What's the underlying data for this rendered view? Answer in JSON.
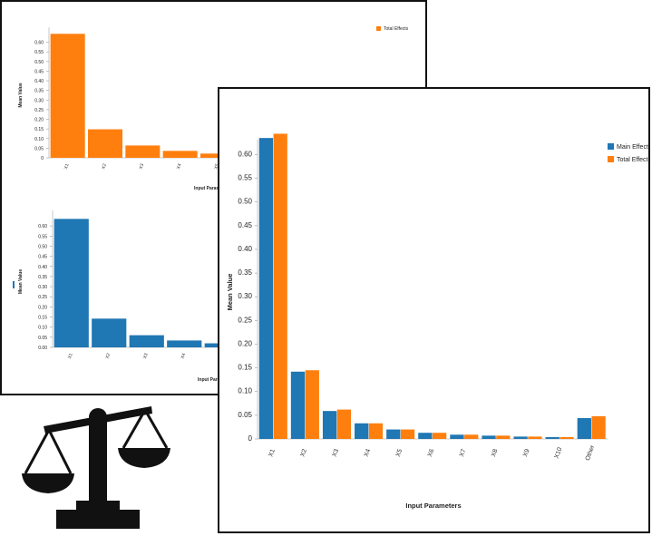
{
  "colors": {
    "main": "#1f77b4",
    "total": "#ff7f0e",
    "icon": "#111111"
  },
  "icons": {
    "scale": "balance-scale-icon"
  },
  "chart_data": [
    {
      "id": "top",
      "type": "bar",
      "categories": [
        "X1",
        "X2",
        "X3",
        "X4",
        "X5",
        "X6"
      ],
      "series": [
        {
          "name": "Total Effects",
          "values": [
            0.644,
            0.148,
            0.064,
            0.036,
            0.022,
            0.014
          ]
        }
      ],
      "ylabel": "Mean Value",
      "xlabel": "Input Parameters",
      "ylim": [
        0,
        0.65
      ],
      "yticks": [
        "0.60",
        "0.55",
        "0.50",
        "0.45",
        "0.40",
        "0.35",
        "0.30",
        "0.25",
        "0.20",
        "0.15",
        "0.10",
        "0.05",
        "0"
      ],
      "legend": "top-right",
      "grid": false
    },
    {
      "id": "bottom",
      "type": "bar",
      "categories": [
        "X1",
        "X2",
        "X3",
        "X4",
        "X5",
        "X6"
      ],
      "series": [
        {
          "name": "Main Effects",
          "values": [
            0.635,
            0.142,
            0.06,
            0.034,
            0.02,
            0.012
          ]
        }
      ],
      "ylabel": "Mean Value",
      "xlabel": "Input Parameters",
      "ylim": [
        0,
        0.65
      ],
      "yticks": [
        "0.60",
        "0.55",
        "0.50",
        "0.45",
        "0.40",
        "0.35",
        "0.30",
        "0.25",
        "0.20",
        "0.15",
        "0.10",
        "0.05",
        "0.00"
      ],
      "legend": "left",
      "grid": false
    },
    {
      "id": "front",
      "type": "bar",
      "categories": [
        "X1",
        "X2",
        "X3",
        "X4",
        "X5",
        "X6",
        "X7",
        "X8",
        "X9",
        "X10",
        "Other"
      ],
      "series": [
        {
          "name": "Main Effects",
          "values": [
            0.635,
            0.142,
            0.059,
            0.033,
            0.02,
            0.013,
            0.009,
            0.007,
            0.005,
            0.004,
            0.044
          ]
        },
        {
          "name": "Total Effects",
          "values": [
            0.644,
            0.145,
            0.062,
            0.033,
            0.02,
            0.013,
            0.009,
            0.007,
            0.005,
            0.004,
            0.048
          ]
        }
      ],
      "ylabel": "Mean Value",
      "xlabel": "Input Parameters",
      "ylim": [
        0,
        0.62
      ],
      "yticks": [
        "0.60",
        "0.55",
        "0.50",
        "0.45",
        "0.40",
        "0.35",
        "0.30",
        "0.25",
        "0.20",
        "0.15",
        "0.10",
        "0.05",
        "0"
      ],
      "legend": "top-right",
      "grid": false
    }
  ]
}
